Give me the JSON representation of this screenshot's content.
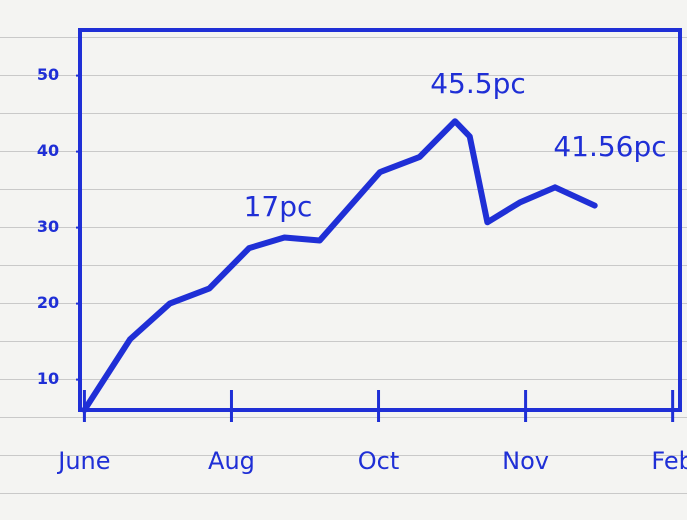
{
  "chart_data": {
    "type": "line",
    "x": [
      0,
      0.31,
      0.58,
      0.85,
      1.12,
      1.36,
      1.6,
      2.01,
      2.28,
      2.52,
      2.62,
      2.74,
      2.96,
      3.2,
      3.47
    ],
    "values": [
      6,
      15.3,
      20,
      22,
      27.3,
      28.7,
      28.3,
      37.3,
      39.3,
      44,
      42,
      30.7,
      33.3,
      35.3,
      32.9
    ],
    "color": "#1f2fd6",
    "xlim": [
      -0.03,
      4.05
    ],
    "xticks": [
      {
        "value": 0,
        "label": "June"
      },
      {
        "value": 1,
        "label": "Aug"
      },
      {
        "value": 2,
        "label": "Oct"
      },
      {
        "value": 3,
        "label": "Nov"
      },
      {
        "value": 4,
        "label": "Feb"
      }
    ],
    "ylim": [
      6,
      56
    ],
    "yticks": [
      10,
      20,
      30,
      40,
      50
    ],
    "annotations": [
      "17pc",
      "45.5pc",
      "41.56pc"
    ]
  }
}
